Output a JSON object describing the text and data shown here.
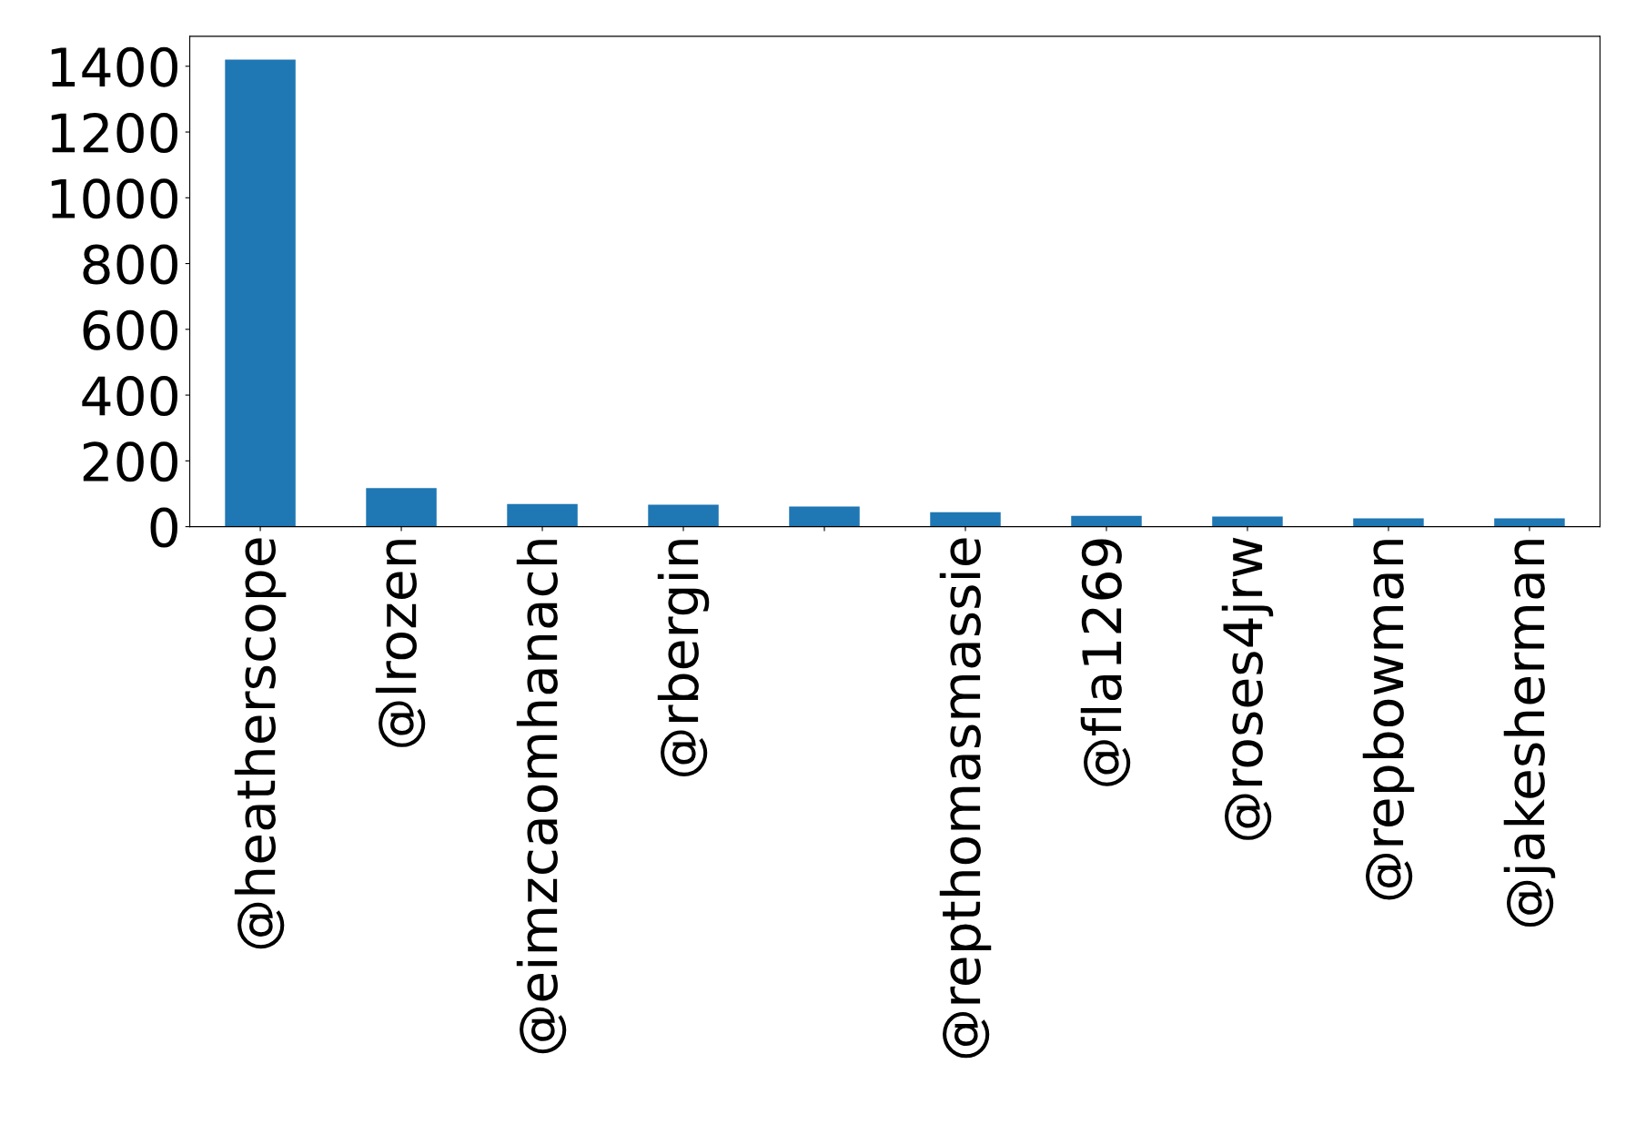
{
  "chart_data": {
    "type": "bar",
    "categories": [
      "@heatherscope",
      "@lrozen",
      "@eimzcaomhanach",
      "@rbergin",
      null,
      "@repthomasmassie",
      "@fla1269",
      "@roses4jrw",
      "@repbowman",
      "@jakesherman"
    ],
    "values": [
      1420,
      117,
      69,
      67,
      61,
      44,
      33,
      31,
      25,
      25
    ],
    "color": "#1f77b4",
    "ylim": [
      0,
      1491
    ],
    "yticks": [
      0,
      200,
      400,
      600,
      800,
      1000,
      1200,
      1400
    ],
    "grid": false,
    "legend": false
  }
}
